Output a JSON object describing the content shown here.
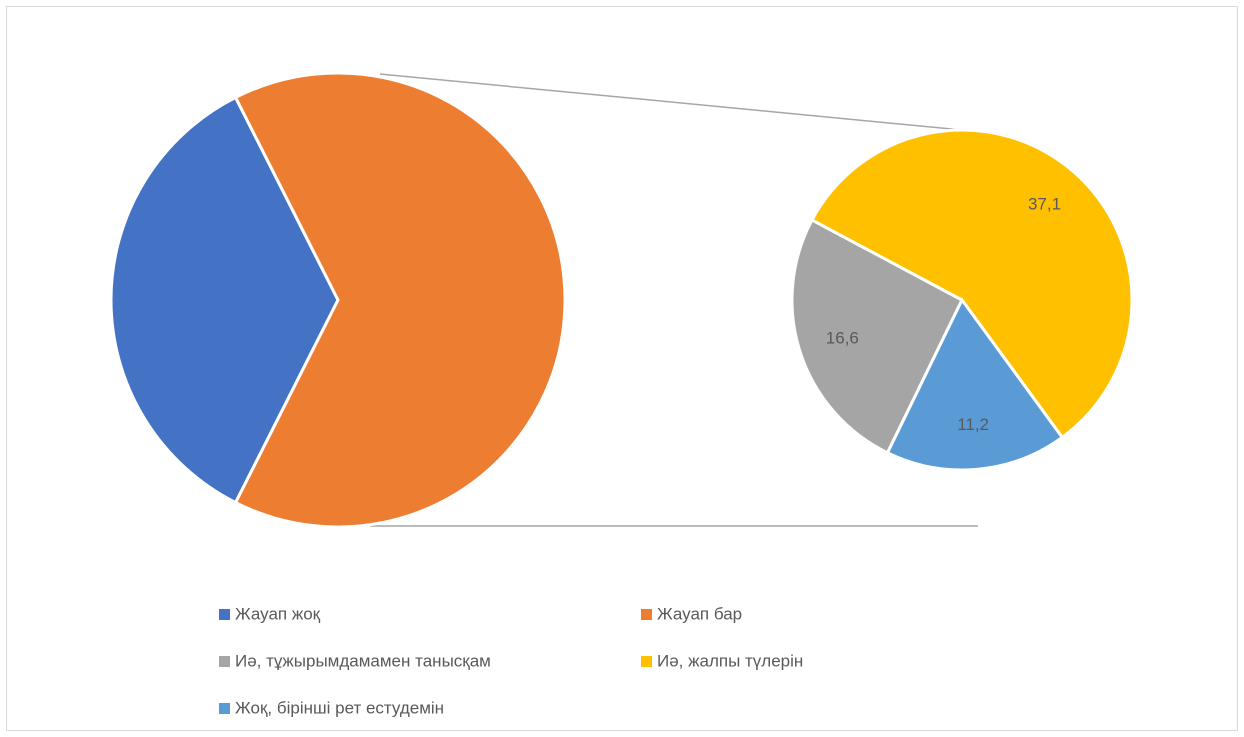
{
  "chart_data": {
    "type": "pie-of-pie",
    "main": {
      "categories": [
        "Жауап жоқ",
        "Жауап бар"
      ],
      "values": [
        35.1,
        64.9
      ],
      "colors": [
        "#4472c4",
        "#ed7d31"
      ]
    },
    "secondary": {
      "categories": [
        "Иә, тұжырымдамамен танысқам",
        "Иә, жалпы түлерін",
        "Жоқ, бірінші рет естудемін"
      ],
      "values": [
        16.6,
        37.1,
        11.2
      ],
      "value_labels": [
        "16,6",
        "37,1",
        "11,2"
      ],
      "colors": [
        "#a5a5a5",
        "#ffc000",
        "#5b9bd5"
      ]
    }
  }
}
